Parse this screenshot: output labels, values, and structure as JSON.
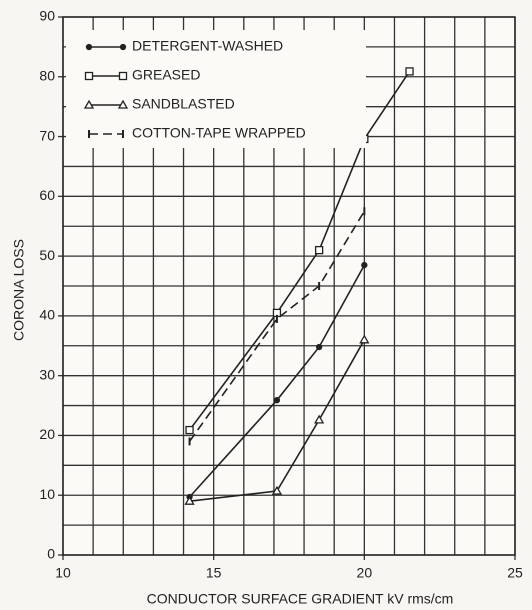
{
  "chart_data": {
    "type": "line",
    "x_label": "CONDUCTOR SURFACE GRADIENT kV rms/cm",
    "y_label": "CORONA LOSS",
    "xlim": [
      10,
      25
    ],
    "xticks": [
      10,
      15,
      20,
      25
    ],
    "ylim": [
      0,
      90
    ],
    "yticks": [
      0,
      10,
      20,
      30,
      40,
      50,
      60,
      70,
      80,
      90
    ],
    "grid": true,
    "xgrid_step": 1,
    "ygrid_step": 5,
    "legend": "upper left",
    "series": [
      {
        "name": "DETERGENT-WASHED",
        "color": "#222222",
        "marker": "dot",
        "dashed": false,
        "x": [
          14.2,
          17.1,
          18.5,
          20
        ],
        "values": [
          9.7,
          25.9,
          34.8,
          48.5
        ]
      },
      {
        "name": "GREASED",
        "color": "#222222",
        "marker": "square",
        "dashed": false,
        "x": [
          14.2,
          17.1,
          18.5,
          20,
          21.5
        ],
        "values": [
          20.9,
          40.5,
          51,
          69.6,
          80.9
        ]
      },
      {
        "name": "SANDBLASTED",
        "color": "#222222",
        "marker": "triangle",
        "dashed": false,
        "x": [
          14.2,
          17.1,
          18.5,
          20
        ],
        "values": [
          9,
          10.7,
          22.6,
          36
        ]
      },
      {
        "name": "COTTON-TAPE WRAPPED",
        "color": "#222222",
        "marker": "tick",
        "dashed": true,
        "x": [
          14.2,
          17.1,
          18.5,
          20
        ],
        "values": [
          19,
          39.5,
          45,
          57.5
        ]
      }
    ]
  }
}
